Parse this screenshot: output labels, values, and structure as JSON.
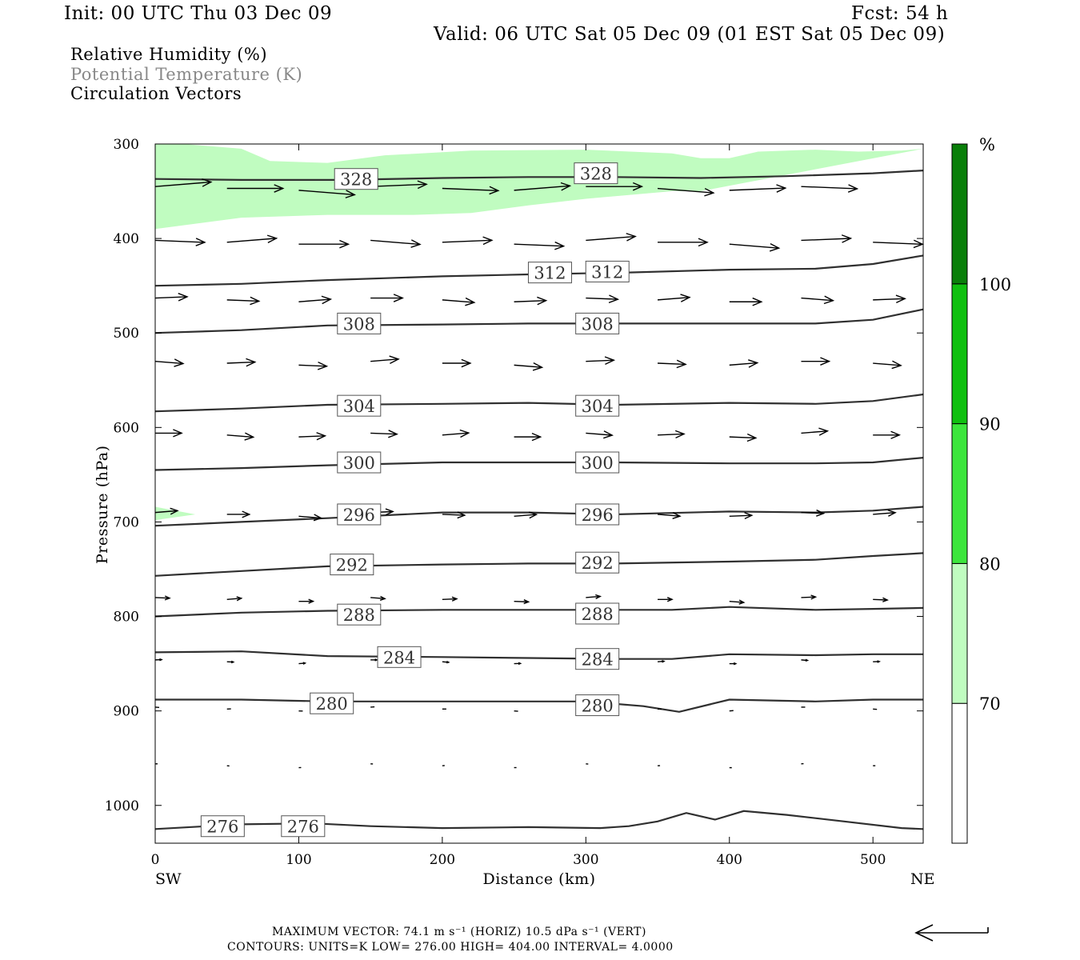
{
  "header": {
    "init": "Init: 00 UTC Thu 03 Dec 09",
    "fcst": "Fcst:   54 h",
    "valid": "Valid: 06 UTC Sat 05 Dec 09 (01 EST Sat 05 Dec 09)"
  },
  "fields": [
    {
      "label": "Relative Humidity (%)"
    },
    {
      "label": "Potential Temperature (K)"
    },
    {
      "label": "Circulation Vectors"
    }
  ],
  "footer": {
    "max_vector": "MAXIMUM VECTOR:  74.1 m s⁻¹ (HORIZ)          10.5 dPa s⁻¹ (VERT)",
    "contours": "CONTOURS:  UNITS=K  LOW=   276.00        HIGH=   404.00        INTERVAL=     4.0000"
  },
  "colors": {
    "rh_70_80": "#c0fcc0",
    "rh_80_90": "#3de63d",
    "rh_90_100": "#10c010",
    "rh_100": "#0a7f0a",
    "contour": "#303030"
  },
  "chart_data": {
    "type": "cross-section",
    "xlabel": "Distance (km)",
    "ylabel": "Pressure (hPa)",
    "xlim": [
      0,
      535
    ],
    "ylim": [
      1040,
      300
    ],
    "x_ticks": [
      "0",
      "100",
      "200",
      "300",
      "400",
      "500"
    ],
    "y_ticks": [
      "300",
      "400",
      "500",
      "600",
      "700",
      "800",
      "900",
      "1000"
    ],
    "x_end_labels": {
      "left": "SW",
      "right": "NE"
    },
    "colorbar": {
      "unit": "%",
      "levels": [
        "70",
        "80",
        "90",
        "100"
      ]
    },
    "theta_contours": [
      {
        "value": "328",
        "points": [
          [
            0,
            337
          ],
          [
            60,
            338
          ],
          [
            130,
            338
          ],
          [
            200,
            336
          ],
          [
            260,
            335
          ],
          [
            320,
            335
          ],
          [
            380,
            336
          ],
          [
            440,
            334
          ],
          [
            500,
            331
          ],
          [
            535,
            328
          ]
        ],
        "labels": [
          [
            140,
            337
          ],
          [
            307,
            331
          ]
        ]
      },
      {
        "value": "312",
        "points": [
          [
            0,
            450
          ],
          [
            60,
            448
          ],
          [
            120,
            444
          ],
          [
            200,
            440
          ],
          [
            260,
            438
          ],
          [
            330,
            436
          ],
          [
            400,
            433
          ],
          [
            460,
            432
          ],
          [
            500,
            427
          ],
          [
            535,
            418
          ]
        ],
        "labels": [
          [
            275,
            436
          ],
          [
            315,
            435
          ]
        ]
      },
      {
        "value": "308",
        "points": [
          [
            0,
            500
          ],
          [
            60,
            497
          ],
          [
            120,
            492
          ],
          [
            200,
            491
          ],
          [
            260,
            490
          ],
          [
            320,
            490
          ],
          [
            400,
            490
          ],
          [
            460,
            490
          ],
          [
            500,
            486
          ],
          [
            535,
            475
          ]
        ],
        "labels": [
          [
            142,
            490
          ],
          [
            308,
            490
          ]
        ]
      },
      {
        "value": "304",
        "points": [
          [
            0,
            583
          ],
          [
            60,
            580
          ],
          [
            120,
            576
          ],
          [
            200,
            575
          ],
          [
            260,
            574
          ],
          [
            320,
            576
          ],
          [
            400,
            574
          ],
          [
            460,
            575
          ],
          [
            500,
            572
          ],
          [
            535,
            565
          ]
        ],
        "labels": [
          [
            142,
            577
          ],
          [
            308,
            577
          ]
        ]
      },
      {
        "value": "300",
        "points": [
          [
            0,
            645
          ],
          [
            60,
            643
          ],
          [
            120,
            640
          ],
          [
            200,
            637
          ],
          [
            260,
            637
          ],
          [
            320,
            637
          ],
          [
            400,
            638
          ],
          [
            460,
            638
          ],
          [
            500,
            637
          ],
          [
            535,
            632
          ]
        ],
        "labels": [
          [
            142,
            637
          ],
          [
            308,
            637
          ]
        ]
      },
      {
        "value": "296",
        "points": [
          [
            0,
            704
          ],
          [
            60,
            700
          ],
          [
            120,
            696
          ],
          [
            200,
            690
          ],
          [
            260,
            690
          ],
          [
            320,
            692
          ],
          [
            400,
            689
          ],
          [
            460,
            690
          ],
          [
            500,
            688
          ],
          [
            535,
            684
          ]
        ],
        "labels": [
          [
            142,
            692
          ],
          [
            308,
            692
          ]
        ]
      },
      {
        "value": "292",
        "points": [
          [
            0,
            757
          ],
          [
            60,
            752
          ],
          [
            120,
            747
          ],
          [
            200,
            745
          ],
          [
            260,
            744
          ],
          [
            320,
            744
          ],
          [
            400,
            742
          ],
          [
            460,
            740
          ],
          [
            500,
            736
          ],
          [
            535,
            733
          ]
        ],
        "labels": [
          [
            137,
            745
          ],
          [
            308,
            743
          ]
        ]
      },
      {
        "value": "288",
        "points": [
          [
            0,
            800
          ],
          [
            60,
            796
          ],
          [
            120,
            794
          ],
          [
            200,
            793
          ],
          [
            260,
            793
          ],
          [
            320,
            793
          ],
          [
            360,
            793
          ],
          [
            400,
            790
          ],
          [
            460,
            793
          ],
          [
            500,
            792
          ],
          [
            535,
            791
          ]
        ],
        "labels": [
          [
            142,
            798
          ],
          [
            308,
            797
          ]
        ]
      },
      {
        "value": "284",
        "points": [
          [
            0,
            838
          ],
          [
            60,
            837
          ],
          [
            120,
            842
          ],
          [
            200,
            843
          ],
          [
            260,
            844
          ],
          [
            320,
            845
          ],
          [
            360,
            845
          ],
          [
            400,
            840
          ],
          [
            460,
            841
          ],
          [
            500,
            840
          ],
          [
            535,
            840
          ]
        ],
        "labels": [
          [
            170,
            843
          ],
          [
            308,
            845
          ]
        ]
      },
      {
        "value": "280",
        "points": [
          [
            0,
            888
          ],
          [
            60,
            888
          ],
          [
            120,
            890
          ],
          [
            200,
            890
          ],
          [
            260,
            890
          ],
          [
            300,
            890
          ],
          [
            340,
            895
          ],
          [
            365,
            901
          ],
          [
            400,
            888
          ],
          [
            460,
            890
          ],
          [
            500,
            888
          ],
          [
            535,
            888
          ]
        ],
        "labels": [
          [
            123,
            892
          ],
          [
            308,
            894
          ]
        ]
      },
      {
        "value": "276",
        "points": [
          [
            0,
            1025
          ],
          [
            60,
            1020
          ],
          [
            110,
            1019
          ],
          [
            150,
            1022
          ],
          [
            200,
            1024
          ],
          [
            260,
            1023
          ],
          [
            310,
            1024
          ],
          [
            330,
            1022
          ],
          [
            350,
            1017
          ],
          [
            370,
            1008
          ],
          [
            390,
            1015
          ],
          [
            410,
            1006
          ],
          [
            440,
            1010
          ],
          [
            480,
            1017
          ],
          [
            520,
            1024
          ],
          [
            535,
            1025
          ]
        ],
        "labels": [
          [
            47,
            1022
          ],
          [
            103,
            1022
          ]
        ]
      }
    ],
    "rh_shaded_regions": [
      {
        "level": "70-80",
        "top_x": [
          0,
          20,
          60,
          80,
          120,
          160,
          220,
          300,
          360,
          380,
          400,
          420,
          460,
          490,
          520,
          535
        ],
        "top_p": [
          300,
          300,
          305,
          318,
          320,
          312,
          307,
          306,
          310,
          315,
          315,
          308,
          306,
          308,
          307,
          305
        ],
        "bottom_x": [
          0,
          60,
          120,
          180,
          220,
          260,
          300,
          360,
          380
        ],
        "bottom_p": [
          390,
          378,
          375,
          375,
          373,
          365,
          358,
          350,
          350
        ]
      }
    ],
    "vectors_note": "Circulation vectors point predominantly west-to-east (toward NE) at all levels, strongest near 300-400 hPa."
  }
}
